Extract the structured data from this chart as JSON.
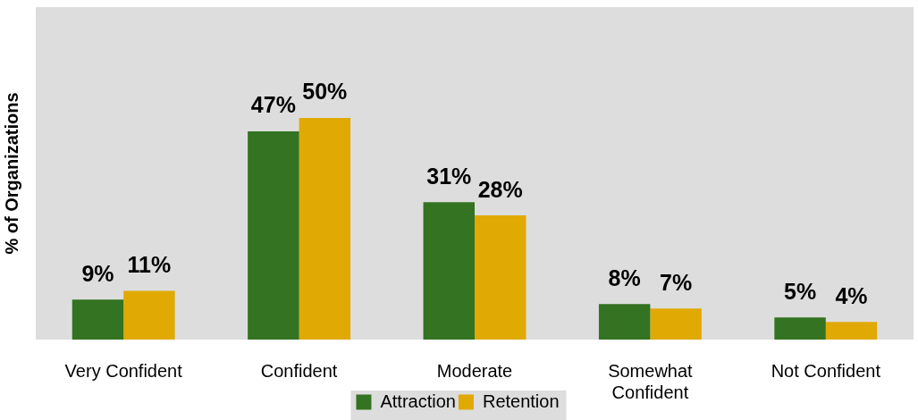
{
  "chart_data": {
    "type": "bar",
    "ylabel": "% of Organizations",
    "categories": [
      "Very Confident",
      "Confident",
      "Moderate",
      "Somewhat Confident",
      "Not Confident"
    ],
    "series": [
      {
        "name": "Attraction",
        "color": "#337321",
        "values": [
          9,
          47,
          31,
          8,
          5
        ],
        "value_labels": [
          "9%",
          "47%",
          "31%",
          "8%",
          "5%"
        ]
      },
      {
        "name": "Retention",
        "color": "#e1a903",
        "values": [
          11,
          50,
          28,
          7,
          4
        ],
        "value_labels": [
          "11%",
          "50%",
          "28%",
          "7%",
          "4%"
        ]
      }
    ],
    "ylim": [
      0,
      75
    ],
    "tick_labels": "x",
    "grid": false,
    "legend": "bottom"
  }
}
